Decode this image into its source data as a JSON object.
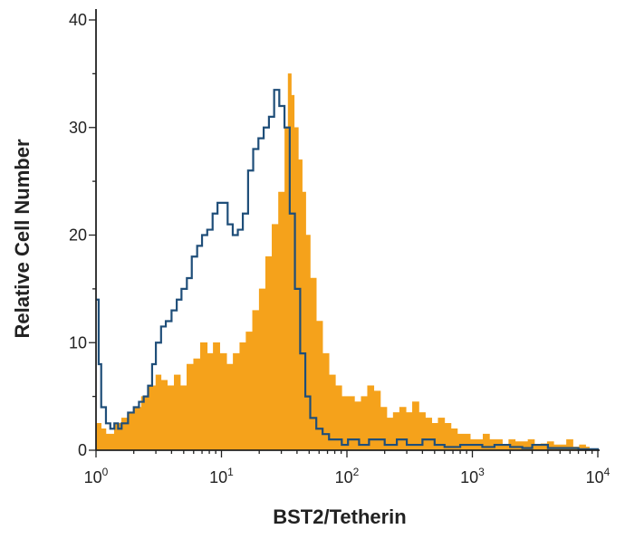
{
  "chart_data": {
    "type": "area",
    "xlabel": "BST2/Tetherin",
    "ylabel": "Relative Cell Number",
    "x_scale": "log",
    "xlim": [
      1,
      10000
    ],
    "ylim": [
      0,
      40
    ],
    "grid": false,
    "x_ticks": [
      {
        "value": 1,
        "base": "10",
        "exp": "0"
      },
      {
        "value": 10,
        "base": "10",
        "exp": "1"
      },
      {
        "value": 100,
        "base": "10",
        "exp": "2"
      },
      {
        "value": 1000,
        "base": "10",
        "exp": "3"
      },
      {
        "value": 10000,
        "base": "10",
        "exp": "4"
      }
    ],
    "y_ticks": [
      {
        "value": 0,
        "label": "0"
      },
      {
        "value": 10,
        "label": "10"
      },
      {
        "value": 20,
        "label": "20"
      },
      {
        "value": 30,
        "label": "30"
      },
      {
        "value": 40,
        "label": "40"
      }
    ],
    "series": [
      {
        "style": "filled",
        "color": "#F5A21B",
        "x": [
          1.0,
          1.1,
          1.2,
          1.4,
          1.6,
          1.8,
          2.0,
          2.3,
          2.6,
          3.0,
          3.3,
          3.7,
          4.2,
          4.7,
          5.3,
          6.0,
          6.8,
          7.7,
          8.6,
          9.7,
          11,
          12.4,
          14,
          15.7,
          17.7,
          20,
          22.5,
          25.3,
          28.5,
          32,
          34,
          36,
          38,
          41,
          44,
          47,
          51,
          57,
          64,
          72,
          81,
          91,
          102,
          115,
          130,
          146,
          164,
          185,
          208,
          234,
          263,
          296,
          333,
          375,
          422,
          475,
          534,
          601,
          676,
          760,
          855,
          962,
          1082,
          1217,
          1370,
          1541,
          1734,
          1951,
          2195,
          2469,
          2778,
          3125,
          3516,
          3955,
          4450,
          5006,
          5632,
          6336,
          7128,
          8000
        ],
        "values": [
          2.5,
          2.0,
          1.5,
          2.5,
          3.0,
          3.5,
          4.0,
          5.0,
          6.0,
          7.0,
          6.5,
          6.0,
          7.0,
          6.0,
          8.0,
          8.5,
          10.0,
          9.0,
          10.0,
          9.0,
          8.0,
          9.0,
          10.0,
          11.0,
          13.0,
          15.0,
          18.0,
          21.0,
          24.0,
          30.0,
          35.0,
          33.0,
          30.0,
          27.0,
          24.0,
          20.0,
          16.0,
          12.0,
          9.0,
          7.0,
          6.0,
          5.0,
          5.0,
          4.5,
          5.0,
          6.0,
          5.5,
          4.0,
          3.0,
          3.5,
          4.0,
          3.5,
          4.5,
          3.5,
          3.0,
          2.5,
          3.0,
          2.5,
          2.0,
          1.5,
          1.5,
          1.0,
          1.0,
          1.5,
          1.0,
          1.0,
          0.5,
          1.0,
          0.8,
          0.8,
          1.0,
          0.5,
          0.6,
          0.8,
          0.5,
          0.5,
          1.0,
          0.3,
          0.5,
          0.3
        ]
      },
      {
        "style": "step",
        "color": "#1F4E79",
        "x": [
          1.0,
          1.05,
          1.1,
          1.2,
          1.3,
          1.4,
          1.5,
          1.6,
          1.8,
          2.0,
          2.2,
          2.4,
          2.6,
          2.8,
          3.0,
          3.3,
          3.6,
          4.0,
          4.4,
          4.8,
          5.3,
          5.8,
          6.4,
          7.0,
          7.7,
          8.5,
          9.3,
          10.2,
          11.2,
          12.3,
          13.5,
          14.8,
          16.3,
          17.9,
          19.7,
          21.7,
          23.9,
          26.3,
          28.9,
          31.8,
          35.0,
          38.5,
          42.4,
          46.6,
          51,
          57,
          64,
          72,
          81,
          91,
          102,
          125,
          150,
          200,
          250,
          300,
          400,
          500,
          600,
          800,
          1000,
          1200,
          1500,
          2000,
          2500,
          3000,
          4000,
          5000,
          7000,
          10000
        ],
        "values": [
          14.0,
          8.0,
          4.0,
          2.5,
          2.0,
          2.5,
          2.0,
          2.5,
          3.5,
          4.0,
          4.5,
          5.0,
          6.0,
          8.0,
          10.0,
          11.5,
          12.0,
          13.0,
          14.0,
          15.0,
          16.0,
          18.0,
          19.0,
          20.0,
          20.5,
          22.0,
          23.0,
          23.0,
          21.0,
          20.0,
          20.5,
          22.0,
          26.0,
          28.0,
          29.0,
          30.0,
          31.0,
          33.5,
          32.0,
          30.0,
          22.0,
          15.0,
          9.0,
          5.0,
          3.0,
          2.0,
          1.5,
          1.0,
          1.0,
          0.5,
          1.0,
          0.5,
          1.0,
          0.5,
          1.0,
          0.5,
          1.0,
          0.5,
          0.3,
          0.5,
          0.5,
          0.3,
          0.5,
          0.3,
          0.2,
          0.5,
          0.2,
          0.2,
          0.1,
          0.0
        ]
      }
    ]
  }
}
